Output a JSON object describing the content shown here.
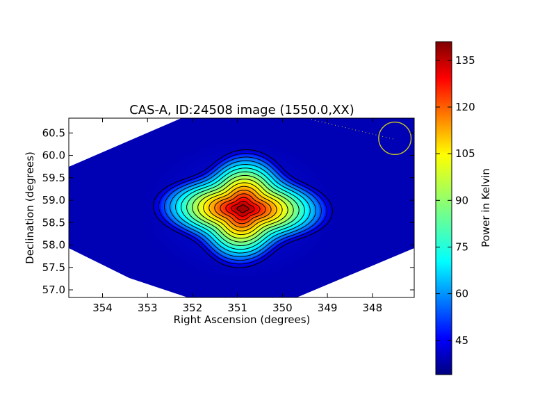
{
  "chart_data": {
    "type": "heatmap",
    "title": "CAS-A, ID:24508 image (1550.0,XX)",
    "xlabel": "Right Ascension (degrees)",
    "ylabel": "Declination (degrees)",
    "xlim": [
      354.75,
      347.07
    ],
    "ylim": [
      56.83,
      60.83
    ],
    "x_ticks": [
      354,
      353,
      352,
      351,
      350,
      349,
      348
    ],
    "y_ticks": [
      57.0,
      57.5,
      58.0,
      58.5,
      59.0,
      59.5,
      60.0,
      60.5
    ],
    "x_tick_labels": [
      "354",
      "353",
      "352",
      "351",
      "350",
      "349",
      "348"
    ],
    "y_tick_labels": [
      "57.0",
      "57.5",
      "58.0",
      "58.5",
      "59.0",
      "59.5",
      "60.0",
      "60.5"
    ],
    "source_peak": {
      "ra": 350.88,
      "dec": 58.81
    },
    "colormap": "jet",
    "colorbar": {
      "label": "Power in Kelvin",
      "range": [
        34,
        141
      ],
      "ticks": [
        45,
        60,
        75,
        90,
        105,
        120,
        135
      ],
      "tick_labels": [
        "45",
        "60",
        "75",
        "90",
        "105",
        "120",
        "135"
      ]
    },
    "contours": {
      "count": 16,
      "color": "#000000"
    },
    "beam_marker": {
      "shape": "circle",
      "ra": 347.5,
      "dec": 60.38,
      "radius_deg": 0.36,
      "color": "#c8c820"
    },
    "grid": false,
    "legend": "none"
  }
}
